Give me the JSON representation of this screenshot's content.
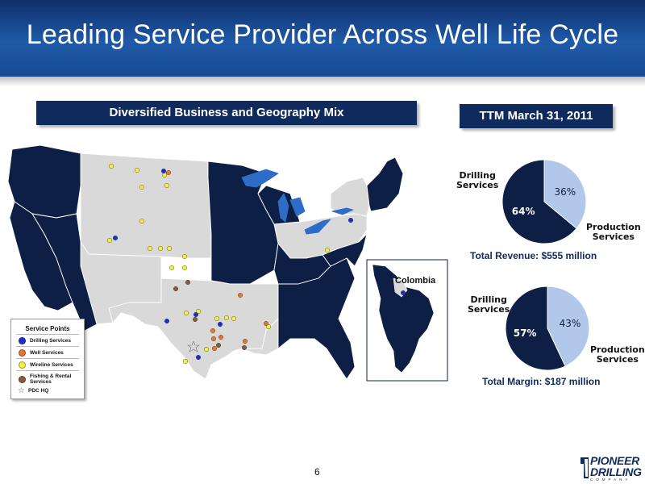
{
  "header": {
    "title": "Leading Service Provider Across Well Life Cycle"
  },
  "left_panel": {
    "title": "Diversified Business and Geography Mix"
  },
  "right_panel": {
    "title": "TTM March 31, 2011"
  },
  "map": {
    "inset_label": "Colombia",
    "colors": {
      "dark_state": "#0e1f45",
      "light_state": "#d9d9d9",
      "water": "#2e6dc7",
      "border": "#ffffff"
    }
  },
  "legend": {
    "title": "Service Points",
    "items": [
      {
        "label": "Drilling Services",
        "color": "#1a2fd1"
      },
      {
        "label": "Well Services",
        "color": "#e8762c"
      },
      {
        "label": "Wireline Services",
        "color": "#f5f03a"
      },
      {
        "label": "Fishing & Rental Services",
        "color": "#8a5a3c"
      },
      {
        "label": "PDC HQ",
        "color": "#c8c8c8",
        "icon": "star-icon"
      }
    ]
  },
  "charts": [
    {
      "type": "pie",
      "title": "Total Revenue: $555 million",
      "slices": [
        {
          "name": "Production Services",
          "label_line1": "Production",
          "label_line2": "Services",
          "value": 36,
          "text": "36%",
          "color": "#b2c8ea"
        },
        {
          "name": "Drilling Services",
          "label_line1": "Drilling",
          "label_line2": "Services",
          "value": 64,
          "text": "64%",
          "color": "#0e1f45"
        }
      ]
    },
    {
      "type": "pie",
      "title": "Total Margin: $187 million",
      "slices": [
        {
          "name": "Production Services",
          "label_line1": "Production",
          "label_line2": "Services",
          "value": 43,
          "text": "43%",
          "color": "#b2c8ea"
        },
        {
          "name": "Drilling Services",
          "label_line1": "Drilling",
          "label_line2": "Services",
          "value": 57,
          "text": "57%",
          "color": "#0e1f45"
        }
      ]
    }
  ],
  "footer": {
    "page_number": "6",
    "logo_line1": "PIONEER",
    "logo_line2": "DRILLING",
    "logo_sub": "COMPANY"
  }
}
